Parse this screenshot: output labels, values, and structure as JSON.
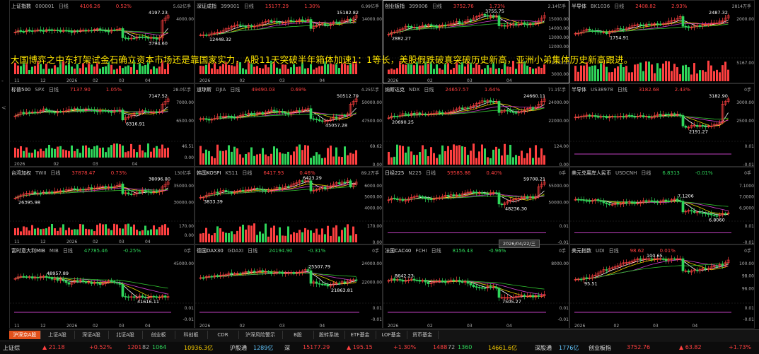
{
  "colors": {
    "up": "#ff4040",
    "down": "#2fd65a",
    "ma1": "#ffffff",
    "ma2": "#e6d000",
    "ma3": "#d040d0",
    "ma4": "#30c030",
    "accent": "#e2501a"
  },
  "overlay_text": "大国博弈之中东打架试金石确立资本市场还是靠国家实力，A股11天突破半年箱体加速1：1等长，美股假跌破真突破历史新高，亚洲小弟集体历史新高跟进。",
  "left_markers": [
    "-",
    "<"
  ],
  "date_tooltip": "2026/04/22/三",
  "panels": [
    {
      "name": "上证指数",
      "code": "000001",
      "period": "日线",
      "price": "4106.26",
      "pct": "0.52%",
      "dir": "up",
      "vol": "5.62亿手",
      "hi": "4197.23",
      "lo": "3794.60",
      "axis": [
        "4000.00"
      ],
      "xlabels": [
        "11",
        "12",
        "2026",
        "02",
        "03",
        "04"
      ],
      "sub": []
    },
    {
      "name": "深证成指",
      "code": "399001",
      "period": "日线",
      "price": "15177.29",
      "pct": "1.30%",
      "dir": "up",
      "vol": "6.99亿手",
      "hi": "15182.82",
      "lo": "12448.32",
      "axis": [
        "14000.00"
      ],
      "xlabels": [
        "2026",
        "02",
        "03",
        "04"
      ],
      "sub": []
    },
    {
      "name": "创业板指",
      "code": "399006",
      "period": "日线",
      "price": "3752.76",
      "pct": "1.73%",
      "dir": "up",
      "vol": "2.14亿手",
      "hi": "3755.75",
      "lo": "2882.27",
      "axis": [
        "15000.00",
        "14000.00",
        "13000.00",
        "12000.00"
      ],
      "xlabels": [
        "2026",
        "02",
        "03",
        "04"
      ],
      "sub": [
        "3500.00",
        "3000.00"
      ]
    },
    {
      "name": "半导体",
      "code": "BK1036",
      "period": "日线",
      "price": "2408.82",
      "pct": "2.93%",
      "dir": "up",
      "vol": "2814万手",
      "hi": "2487.32",
      "lo": "1754.91",
      "axis": [
        "2000.00"
      ],
      "xlabels": [],
      "sub": [
        "5167.00"
      ]
    },
    {
      "name": "标普500",
      "code": "SPX",
      "period": "日线",
      "price": "7137.90",
      "pct": "1.05%",
      "dir": "up",
      "vol": "28.0亿手",
      "hi": "7147.52",
      "lo": "6316.91",
      "axis": [
        "7000.00",
        "6500.00"
      ],
      "xlabels": [
        "2026",
        "02",
        "03",
        "04"
      ],
      "sub": [
        "46.51",
        "0.00"
      ]
    },
    {
      "name": "道琼斯",
      "code": "DJIA",
      "period": "日线",
      "price": "49490.03",
      "pct": "0.69%",
      "dir": "up",
      "vol": "4.25亿手",
      "hi": "50512.79",
      "lo": "45057.28",
      "axis": [
        "50000.00",
        "47500.00"
      ],
      "xlabels": [],
      "sub": [
        "69.62",
        "0.00"
      ]
    },
    {
      "name": "纳斯达克",
      "code": "NDX",
      "period": "日线",
      "price": "24657.57",
      "pct": "1.64%",
      "dir": "up",
      "vol": "71.1亿手",
      "hi": "24660.11",
      "lo": "20690.25",
      "axis": [
        "24000.00",
        "22000.00"
      ],
      "xlabels": [],
      "sub": [
        "124.00",
        "0.00"
      ]
    },
    {
      "name": "半导体",
      "code": "US38978",
      "period": "日线",
      "price": "3182.68",
      "pct": "2.43%",
      "dir": "up",
      "vol": "0手",
      "hi": "3182.90",
      "lo": "2191.27",
      "axis": [
        "3000.00",
        "2500.00"
      ],
      "xlabels": [],
      "sub": [
        "0.01",
        "-0.01"
      ]
    },
    {
      "name": "台湾加权",
      "code": "TWII",
      "period": "日线",
      "price": "37878.47",
      "pct": "0.73%",
      "dir": "up",
      "vol": "130亿手",
      "hi": "38096.80",
      "lo": "26395.98",
      "axis": [
        "35000.00",
        "30000.00"
      ],
      "xlabels": [
        "11",
        "12",
        "2026",
        "02",
        "03",
        "04"
      ],
      "sub": [
        "170.00",
        "0.00"
      ]
    },
    {
      "name": "韩国KOSPI",
      "code": "KS11",
      "period": "日线",
      "price": "6417.93",
      "pct": "0.46%",
      "dir": "up",
      "vol": "89.2万手",
      "hi": "6423.29",
      "lo": "3833.39",
      "axis": [
        "6000.00",
        "5000.00",
        "4000.00"
      ],
      "xlabels": [],
      "sub": [
        "170.00",
        "0.00"
      ]
    },
    {
      "name": "日经225",
      "code": "N225",
      "period": "日线",
      "price": "59585.86",
      "pct": "0.40%",
      "dir": "up",
      "vol": "0手",
      "hi": "59708.21",
      "lo": "48236.30",
      "axis": [
        "55000.00",
        "50000.00"
      ],
      "xlabels": [],
      "sub": [
        "0.01",
        "-0.01"
      ]
    },
    {
      "name": "美元兑离岸人民币",
      "code": "USDCNH",
      "period": "日线",
      "price": "6.8313",
      "pct": "-0.01%",
      "dir": "dn",
      "vol": "0手",
      "hi": "7.1206",
      "lo": "6.8060",
      "axis": [
        "7.1000",
        "7.0000",
        "6.9000"
      ],
      "xlabels": [],
      "sub": [
        "0.01",
        "-0.01"
      ]
    },
    {
      "name": "富时意大利MIB",
      "code": "MIB",
      "period": "日线",
      "price": "47785.46",
      "pct": "-0.25%",
      "dir": "dn",
      "vol": "0手",
      "hi": "48957.89",
      "lo": "41616.11",
      "axis": [
        "45000.00"
      ],
      "xlabels": [
        "11",
        "12",
        "2026",
        "02",
        "03",
        "04"
      ],
      "sub": [
        "0.01",
        "-0.01"
      ]
    },
    {
      "name": "德国DAX30",
      "code": "GDAXI",
      "period": "日线",
      "price": "24194.90",
      "pct": "-0.31%",
      "dir": "dn",
      "vol": "0手",
      "hi": "25507.79",
      "lo": "21863.81",
      "axis": [
        "24000.00",
        "22000.00"
      ],
      "xlabels": [
        "2026",
        "02",
        "03",
        "04"
      ],
      "sub": [
        "0.01",
        "-0.01"
      ]
    },
    {
      "name": "法国CAC40",
      "code": "FCHI",
      "period": "日线",
      "price": "8156.43",
      "pct": "-0.96%",
      "dir": "dn",
      "vol": "0手",
      "hi": "8642.23",
      "lo": "7505.27",
      "axis": [
        "8000.00"
      ],
      "xlabels": [
        "2026",
        "02",
        "03",
        "04"
      ],
      "sub": [
        "0.01",
        "-0.01"
      ]
    },
    {
      "name": "美元指数",
      "code": "UDI",
      "period": "日线",
      "price": "98.62",
      "pct": "0.01%",
      "dir": "up",
      "vol": "0手",
      "hi": "100.65",
      "lo": "95.51",
      "axis": [
        "100.00",
        "98.00",
        "96.00"
      ],
      "xlabels": [
        "2026",
        "02",
        "03",
        "04"
      ],
      "sub": [
        "0.01",
        "-0.01"
      ]
    }
  ],
  "tabs": [
    "沪深京A股",
    "上证A股",
    "深证A股",
    "北证A股",
    "创业板",
    "科创板",
    "CDR",
    "沪深风险警示",
    "B股",
    "股转系统",
    "ETF基金",
    "LOF基金",
    "货币基金"
  ],
  "status": {
    "sh_label": "上证综",
    "sh_chg": "▲ 21.18",
    "sh_pct": "+0.52%",
    "sh_count": "1201",
    "sh_flat": "82",
    "sh_down": "1064",
    "sh_amt": "10936.3亿",
    "hgt_label": "沪股通",
    "hgt_value": "1289亿",
    "sz_label": "深",
    "sz_price": "15177.29",
    "sz_chg": "▲ 195.15",
    "sz_pct": "+1.30%",
    "sz_count": "1488",
    "sz_flat": "72",
    "sz_down": "1360",
    "sz_amt": "14661.6亿",
    "sgt_label": "深股通",
    "sgt_value": "1776亿",
    "cyb_label": "创业板指",
    "cyb_price": "3752.76",
    "cyb_chg": "▲ 63.82",
    "cyb_pct": "+1.73%"
  }
}
